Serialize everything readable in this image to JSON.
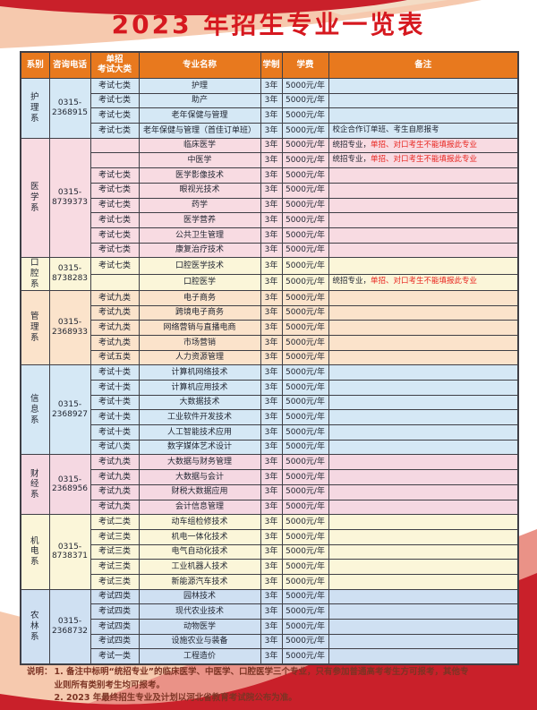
{
  "title": "2023 年招生专业一览表",
  "colors": {
    "title_red": "#d6181f",
    "header_bg": "#e8791e",
    "remark_red": "#e8231d",
    "note_text": "#7c3424"
  },
  "table": {
    "headers": {
      "dept": "系别",
      "phone": "咨询电话",
      "exam1": "单招",
      "exam2": "考试大类",
      "major": "专业名称",
      "duration": "学制",
      "tuition": "学费",
      "remark": "备注"
    },
    "departments": [
      {
        "name": "护理系",
        "phone": "0315-2368915",
        "color": "#d5e8f5",
        "rows": [
          {
            "exam": "考试七类",
            "major": "护理",
            "duration": "3年",
            "tuition": "5000元/年",
            "remark": "",
            "remark_red": ""
          },
          {
            "exam": "考试七类",
            "major": "助产",
            "duration": "3年",
            "tuition": "5000元/年",
            "remark": "",
            "remark_red": ""
          },
          {
            "exam": "考试七类",
            "major": "老年保健与管理",
            "duration": "3年",
            "tuition": "5000元/年",
            "remark": "",
            "remark_red": ""
          },
          {
            "exam": "考试七类",
            "major": "老年保健与管理（首佳订单班）",
            "duration": "3年",
            "tuition": "5000元/年",
            "remark": "校企合作订单班、考生自愿报考",
            "remark_red": ""
          }
        ]
      },
      {
        "name": "医学系",
        "phone": "0315-8739373",
        "color": "#f8dbe2",
        "rows": [
          {
            "exam": "",
            "major": "临床医学",
            "duration": "3年",
            "tuition": "5000元/年",
            "remark": "统招专业，",
            "remark_red": "单招、对口考生不能填报此专业"
          },
          {
            "exam": "",
            "major": "中医学",
            "duration": "3年",
            "tuition": "5000元/年",
            "remark": "统招专业，",
            "remark_red": "单招、对口考生不能填报此专业"
          },
          {
            "exam": "考试七类",
            "major": "医学影像技术",
            "duration": "3年",
            "tuition": "5000元/年",
            "remark": "",
            "remark_red": ""
          },
          {
            "exam": "考试七类",
            "major": "眼视光技术",
            "duration": "3年",
            "tuition": "5000元/年",
            "remark": "",
            "remark_red": ""
          },
          {
            "exam": "考试七类",
            "major": "药学",
            "duration": "3年",
            "tuition": "5000元/年",
            "remark": "",
            "remark_red": ""
          },
          {
            "exam": "考试七类",
            "major": "医学营养",
            "duration": "3年",
            "tuition": "5000元/年",
            "remark": "",
            "remark_red": ""
          },
          {
            "exam": "考试七类",
            "major": "公共卫生管理",
            "duration": "3年",
            "tuition": "5000元/年",
            "remark": "",
            "remark_red": ""
          },
          {
            "exam": "考试七类",
            "major": "康复治疗技术",
            "duration": "3年",
            "tuition": "5000元/年",
            "remark": "",
            "remark_red": ""
          }
        ]
      },
      {
        "name": "口腔系",
        "phone": "0315-8738283",
        "color": "#fbf6d9",
        "rows": [
          {
            "exam": "考试七类",
            "major": "口腔医学技术",
            "duration": "3年",
            "tuition": "5000元/年",
            "remark": "",
            "remark_red": ""
          },
          {
            "exam": "",
            "major": "口腔医学",
            "duration": "3年",
            "tuition": "5000元/年",
            "remark": "统招专业，",
            "remark_red": "单招、对口考生不能填报此专业"
          }
        ]
      },
      {
        "name": "管理系",
        "phone": "0315-2368933",
        "color": "#fbe3cb",
        "rows": [
          {
            "exam": "考试九类",
            "major": "电子商务",
            "duration": "3年",
            "tuition": "5000元/年",
            "remark": "",
            "remark_red": ""
          },
          {
            "exam": "考试九类",
            "major": "跨境电子商务",
            "duration": "3年",
            "tuition": "5000元/年",
            "remark": "",
            "remark_red": ""
          },
          {
            "exam": "考试九类",
            "major": "网络营销与直播电商",
            "duration": "3年",
            "tuition": "5000元/年",
            "remark": "",
            "remark_red": ""
          },
          {
            "exam": "考试九类",
            "major": "市场营销",
            "duration": "3年",
            "tuition": "5000元/年",
            "remark": "",
            "remark_red": ""
          },
          {
            "exam": "考试五类",
            "major": "人力资源管理",
            "duration": "3年",
            "tuition": "5000元/年",
            "remark": "",
            "remark_red": ""
          }
        ]
      },
      {
        "name": "信息系",
        "phone": "0315-2368927",
        "color": "#d5e8f5",
        "rows": [
          {
            "exam": "考试十类",
            "major": "计算机网络技术",
            "duration": "3年",
            "tuition": "5000元/年",
            "remark": "",
            "remark_red": ""
          },
          {
            "exam": "考试十类",
            "major": "计算机应用技术",
            "duration": "3年",
            "tuition": "5000元/年",
            "remark": "",
            "remark_red": ""
          },
          {
            "exam": "考试十类",
            "major": "大数据技术",
            "duration": "3年",
            "tuition": "5000元/年",
            "remark": "",
            "remark_red": ""
          },
          {
            "exam": "考试十类",
            "major": "工业软件开发技术",
            "duration": "3年",
            "tuition": "5000元/年",
            "remark": "",
            "remark_red": ""
          },
          {
            "exam": "考试十类",
            "major": "人工智能技术应用",
            "duration": "3年",
            "tuition": "5000元/年",
            "remark": "",
            "remark_red": ""
          },
          {
            "exam": "考试八类",
            "major": "数字媒体艺术设计",
            "duration": "3年",
            "tuition": "5000元/年",
            "remark": "",
            "remark_red": ""
          }
        ]
      },
      {
        "name": "财经系",
        "phone": "0315-2368956",
        "color": "#f5d8e2",
        "rows": [
          {
            "exam": "考试九类",
            "major": "大数据与财务管理",
            "duration": "3年",
            "tuition": "5000元/年",
            "remark": "",
            "remark_red": ""
          },
          {
            "exam": "考试九类",
            "major": "大数据与会计",
            "duration": "3年",
            "tuition": "5000元/年",
            "remark": "",
            "remark_red": ""
          },
          {
            "exam": "考试九类",
            "major": "财税大数据应用",
            "duration": "3年",
            "tuition": "5000元/年",
            "remark": "",
            "remark_red": ""
          },
          {
            "exam": "考试九类",
            "major": "会计信息管理",
            "duration": "3年",
            "tuition": "5000元/年",
            "remark": "",
            "remark_red": ""
          }
        ]
      },
      {
        "name": "机电系",
        "phone": "0315-8738371",
        "color": "#fbf6d9",
        "rows": [
          {
            "exam": "考试二类",
            "major": "动车组检修技术",
            "duration": "3年",
            "tuition": "5000元/年",
            "remark": "",
            "remark_red": ""
          },
          {
            "exam": "考试三类",
            "major": "机电一体化技术",
            "duration": "3年",
            "tuition": "5000元/年",
            "remark": "",
            "remark_red": ""
          },
          {
            "exam": "考试三类",
            "major": "电气自动化技术",
            "duration": "3年",
            "tuition": "5000元/年",
            "remark": "",
            "remark_red": ""
          },
          {
            "exam": "考试三类",
            "major": "工业机器人技术",
            "duration": "3年",
            "tuition": "5000元/年",
            "remark": "",
            "remark_red": ""
          },
          {
            "exam": "考试三类",
            "major": "新能源汽车技术",
            "duration": "3年",
            "tuition": "5000元/年",
            "remark": "",
            "remark_red": ""
          }
        ]
      },
      {
        "name": "农林系",
        "phone": "0315-2368732",
        "color": "#cfe0f2",
        "rows": [
          {
            "exam": "考试四类",
            "major": "园林技术",
            "duration": "3年",
            "tuition": "5000元/年",
            "remark": "",
            "remark_red": ""
          },
          {
            "exam": "考试四类",
            "major": "现代农业技术",
            "duration": "3年",
            "tuition": "5000元/年",
            "remark": "",
            "remark_red": ""
          },
          {
            "exam": "考试四类",
            "major": "动物医学",
            "duration": "3年",
            "tuition": "5000元/年",
            "remark": "",
            "remark_red": ""
          },
          {
            "exam": "考试四类",
            "major": "设施农业与装备",
            "duration": "3年",
            "tuition": "5000元/年",
            "remark": "",
            "remark_red": ""
          },
          {
            "exam": "考试一类",
            "major": "工程造价",
            "duration": "3年",
            "tuition": "5000元/年",
            "remark": "",
            "remark_red": ""
          }
        ]
      }
    ]
  },
  "notes": {
    "label": "说明：",
    "item1": "1. 备注中标明“统招专业”的临床医学、中医学、口腔医学三个专业，只有参加普通高考考生方可报考，其他专业则所有类别考生均可报考。",
    "item2": "2. 2023 年最终招生专业及计划以河北省教育考试院公布为准。"
  }
}
